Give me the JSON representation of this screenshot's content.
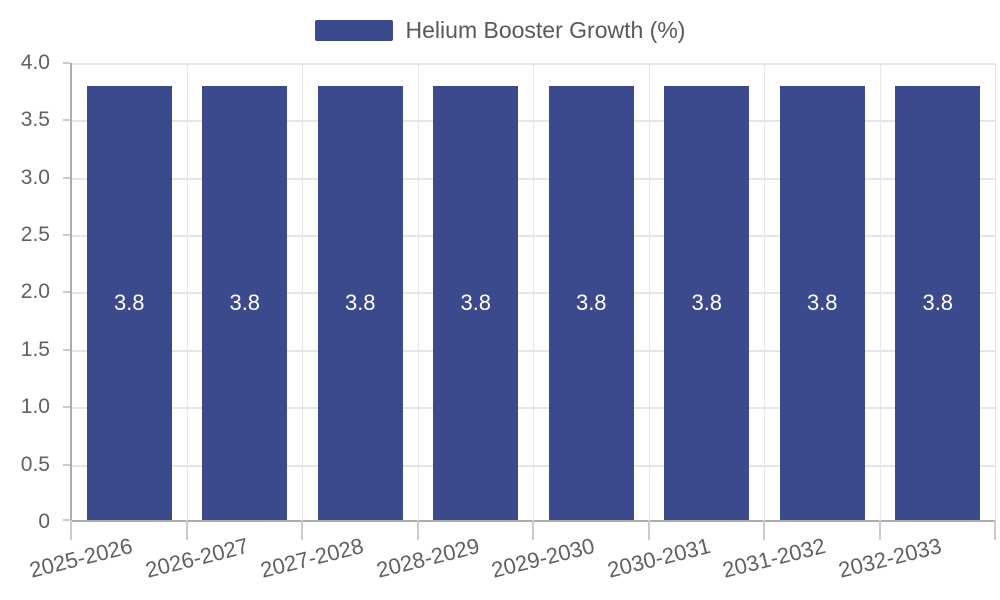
{
  "chart_data": {
    "type": "bar",
    "title": "",
    "legend": "Helium Booster Growth (%)",
    "legend_position": "top-center",
    "categories": [
      "2025-2026",
      "2026-2027",
      "2027-2028",
      "2028-2029",
      "2029-2030",
      "2030-2031",
      "2031-2032",
      "2032-2033"
    ],
    "values": [
      3.8,
      3.8,
      3.8,
      3.8,
      3.8,
      3.8,
      3.8,
      3.8
    ],
    "xlabel": "",
    "ylabel": "",
    "ylim": [
      0,
      4.0
    ],
    "y_ticks": [
      "4.0",
      "3.5",
      "3.0",
      "2.5",
      "2.0",
      "1.5",
      "1.0",
      "0.5",
      "0"
    ],
    "grid": true,
    "x_label_rotation_deg": -14,
    "colors": {
      "bar": "#3b4a8c",
      "grid": "#e6e6e6",
      "axis": "#adadad",
      "tick": "#cccccc",
      "text": "#616161",
      "value": "#ffffff",
      "legend": "#595959"
    }
  }
}
